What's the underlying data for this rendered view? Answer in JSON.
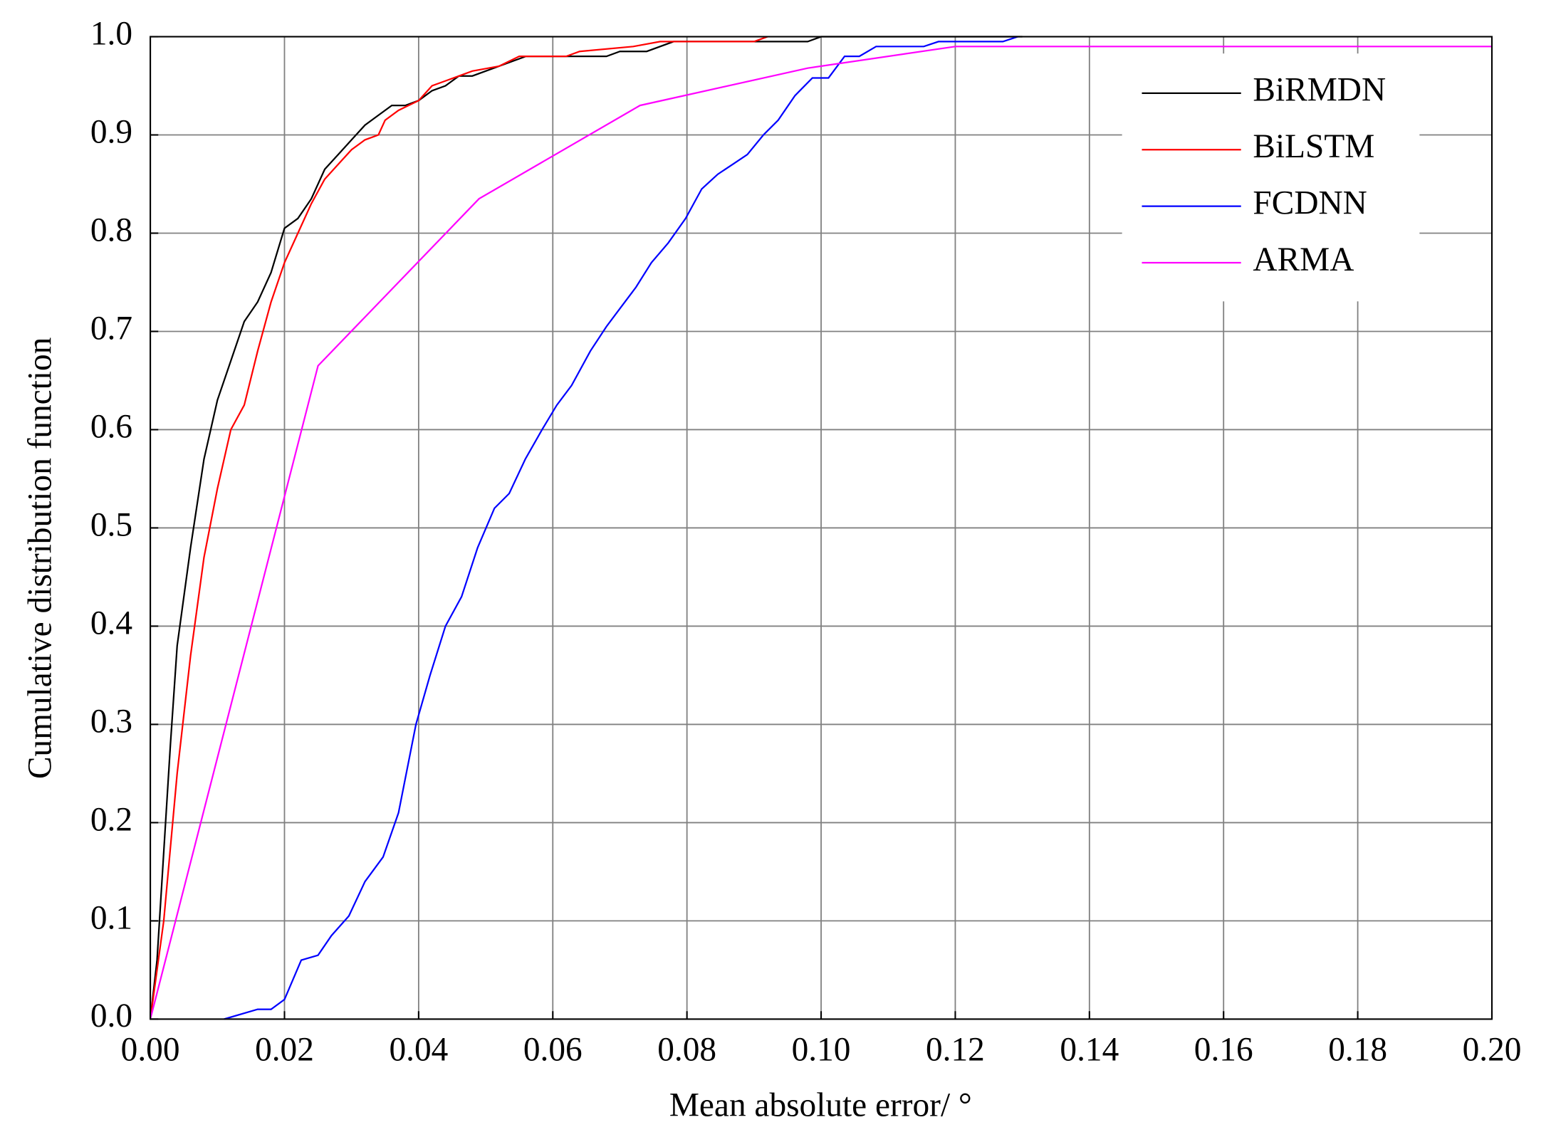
{
  "chart_data": {
    "type": "line",
    "xlabel": "Mean absolute error/ °",
    "ylabel": "Cumulative distribution function",
    "xlim": [
      0,
      0.2
    ],
    "ylim": [
      0,
      1
    ],
    "xticks": [
      {
        "value": 0,
        "label": "0.00"
      },
      0.02,
      0.04,
      0.06,
      0.08,
      {
        "value": 0.1,
        "label": "0.10"
      },
      0.12,
      0.14,
      0.16,
      0.18,
      {
        "value": 0.2,
        "label": "0.20"
      }
    ],
    "yticks": [
      {
        "value": 0,
        "label": "0.0"
      },
      0.1,
      0.2,
      0.3,
      0.4,
      0.5,
      0.6,
      0.7,
      0.8,
      0.9,
      {
        "value": 1,
        "label": "1.0"
      }
    ],
    "grid": true,
    "legend": "upper-right",
    "series": [
      {
        "name": "BiRMDN",
        "color": "#000000",
        "x": [
          0,
          0.001,
          0.002,
          0.003,
          0.004,
          0.006,
          0.008,
          0.01,
          0.012,
          0.014,
          0.016,
          0.018,
          0.02,
          0.022,
          0.024,
          0.026,
          0.028,
          0.03,
          0.032,
          0.034,
          0.036,
          0.038,
          0.04,
          0.042,
          0.044,
          0.046,
          0.048,
          0.05,
          0.054,
          0.056,
          0.06,
          0.068,
          0.07,
          0.074,
          0.078,
          0.09,
          0.098,
          0.1,
          0.13
        ],
        "values": [
          0,
          0.06,
          0.17,
          0.28,
          0.38,
          0.48,
          0.57,
          0.63,
          0.67,
          0.71,
          0.73,
          0.76,
          0.805,
          0.815,
          0.835,
          0.865,
          0.88,
          0.895,
          0.91,
          0.92,
          0.93,
          0.93,
          0.935,
          0.945,
          0.95,
          0.96,
          0.96,
          0.965,
          0.975,
          0.98,
          0.98,
          0.98,
          0.985,
          0.985,
          0.995,
          0.995,
          0.995,
          1,
          1
        ]
      },
      {
        "name": "BiLSTM",
        "color": "#ff0000",
        "x": [
          0,
          0.002,
          0.004,
          0.006,
          0.008,
          0.01,
          0.012,
          0.014,
          0.016,
          0.018,
          0.02,
          0.022,
          0.024,
          0.026,
          0.028,
          0.03,
          0.032,
          0.034,
          0.035,
          0.037,
          0.04,
          0.042,
          0.044,
          0.048,
          0.052,
          0.055,
          0.062,
          0.064,
          0.072,
          0.076,
          0.09,
          0.092
        ],
        "values": [
          0,
          0.1,
          0.25,
          0.37,
          0.47,
          0.54,
          0.6,
          0.625,
          0.68,
          0.73,
          0.77,
          0.8,
          0.83,
          0.855,
          0.87,
          0.885,
          0.895,
          0.9,
          0.915,
          0.925,
          0.935,
          0.95,
          0.955,
          0.965,
          0.97,
          0.98,
          0.98,
          0.985,
          0.99,
          0.995,
          0.995,
          1
        ]
      },
      {
        "name": "FCDNN",
        "color": "#0000ff",
        "x": [
          0.011,
          0.016,
          0.018,
          0.02,
          0.0225,
          0.025,
          0.027,
          0.0296,
          0.032,
          0.0347,
          0.037,
          0.0396,
          0.0417,
          0.044,
          0.0464,
          0.0488,
          0.0513,
          0.0535,
          0.0559,
          0.0584,
          0.0606,
          0.0628,
          0.0656,
          0.068,
          0.0702,
          0.0724,
          0.0747,
          0.0772,
          0.0798,
          0.0822,
          0.0846,
          0.0868,
          0.089,
          0.0914,
          0.0936,
          0.0961,
          0.0987,
          0.1011,
          0.1035,
          0.1057,
          0.1082,
          0.1153,
          0.1175,
          0.1271,
          0.1293
        ],
        "values": [
          0,
          0.01,
          0.01,
          0.02,
          0.06,
          0.065,
          0.085,
          0.105,
          0.14,
          0.165,
          0.21,
          0.3,
          0.35,
          0.4,
          0.43,
          0.48,
          0.52,
          0.535,
          0.57,
          0.6,
          0.625,
          0.645,
          0.68,
          0.705,
          0.725,
          0.745,
          0.77,
          0.79,
          0.815,
          0.845,
          0.86,
          0.87,
          0.88,
          0.9,
          0.915,
          0.94,
          0.958,
          0.958,
          0.98,
          0.98,
          0.99,
          0.99,
          0.995,
          0.995,
          1
        ]
      },
      {
        "name": "ARMA",
        "color": "#ff00ff",
        "x": [
          0,
          0.025,
          0.049,
          0.073,
          0.098,
          0.12,
          0.2
        ],
        "values": [
          0,
          0.665,
          0.835,
          0.93,
          0.968,
          0.99,
          0.99
        ]
      }
    ]
  }
}
